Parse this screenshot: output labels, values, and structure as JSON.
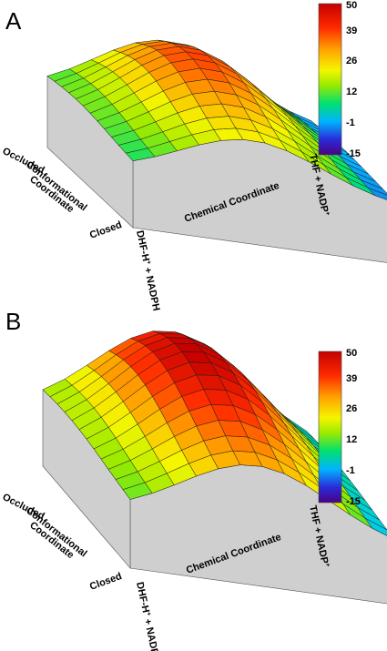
{
  "panels": [
    {
      "letter": "A",
      "conformational_axis": {
        "start_label": "Occluded",
        "title_line1": "Conformational",
        "title_line2": "Coordinate",
        "end_label": "Closed"
      },
      "chemical_axis": {
        "title": "Chemical Coordinate",
        "start_label_main": "DHF-H",
        "start_label_sup": "+",
        "start_label_rest": " + NADPH",
        "end_label_main": "THF + NADP",
        "end_label_sup": "+"
      },
      "colorbar": {
        "ticks": [
          "50",
          "39",
          "26",
          "12",
          "-1",
          "-15"
        ],
        "min": -15,
        "max": 50
      }
    },
    {
      "letter": "B",
      "conformational_axis": {
        "start_label": "Occluded",
        "title_line1": "Conformational",
        "title_line2": "Coordinate",
        "end_label": "Closed"
      },
      "chemical_axis": {
        "title": "Chemical Coordinate",
        "start_label_main": "DHF-H",
        "start_label_sup": "+",
        "start_label_rest": " + NADPH",
        "end_label_main": "THF + NADP",
        "end_label_sup": "+"
      },
      "colorbar": {
        "ticks": [
          "50",
          "39",
          "26",
          "12",
          "-1",
          "-15"
        ],
        "min": -15,
        "max": 50
      }
    }
  ],
  "colors": {
    "side_wall": "#cfcfcf",
    "mesh_line": "#1a1a1a",
    "colormap": [
      "#4b0082",
      "#2a2ad8",
      "#00c8ff",
      "#00e070",
      "#9aea00",
      "#f5f500",
      "#ffa000",
      "#ff2a00",
      "#c40000"
    ]
  }
}
